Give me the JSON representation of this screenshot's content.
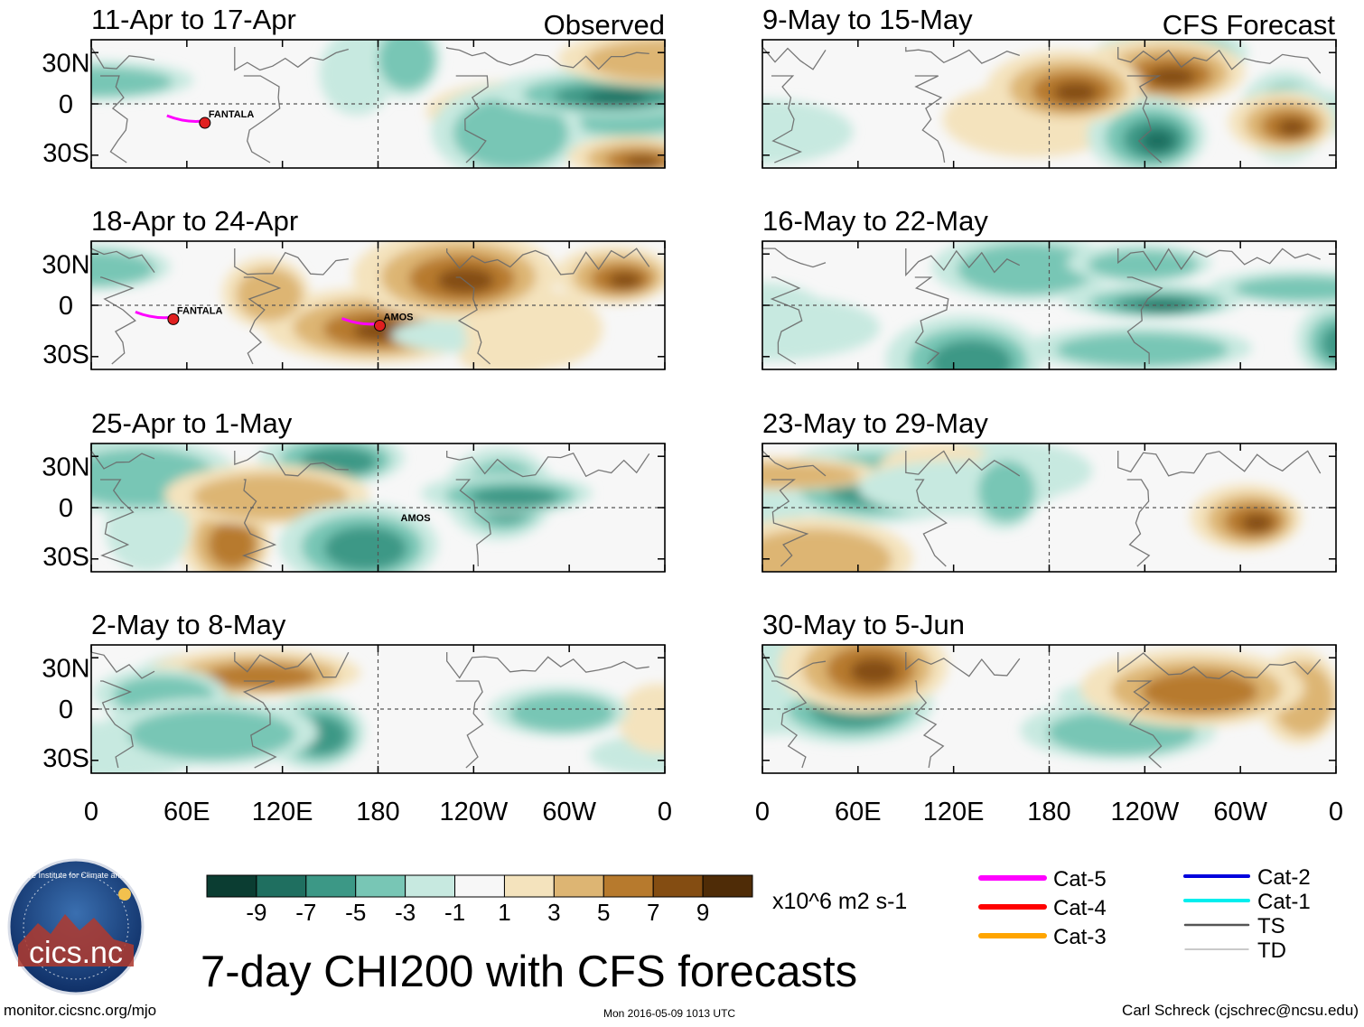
{
  "header": {
    "observed_label": "Observed",
    "forecast_label": "CFS Forecast"
  },
  "chart_data": {
    "type": "heatmap",
    "title": "7-day CHI200 with CFS forecasts",
    "variable": "CHI200 anomaly (7-day mean)",
    "units": "x10^6 m2 s-1",
    "x_ticks": [
      "0",
      "60E",
      "120E",
      "180",
      "120W",
      "60W",
      "0"
    ],
    "y_ticks": [
      "30N",
      "0",
      "30S"
    ],
    "colorbar": {
      "labels": [
        "-9",
        "-7",
        "-5",
        "-3",
        "-1",
        "1",
        "3",
        "5",
        "7",
        "9"
      ],
      "colors": [
        "#0b3d32",
        "#1f6f60",
        "#3c9886",
        "#78c6b5",
        "#c7e9e0",
        "#f7f7f7",
        "#f4e3bd",
        "#ddb573",
        "#b77a2d",
        "#844d12",
        "#4f2c07"
      ]
    },
    "panels": [
      {
        "column": "Observed",
        "period": "11-Apr to 17-Apr",
        "storm_labels": [
          "FANTALA"
        ]
      },
      {
        "column": "Observed",
        "period": "18-Apr to 24-Apr",
        "storm_labels": [
          "FANTALA",
          "AMOS"
        ]
      },
      {
        "column": "Observed",
        "period": "25-Apr to 1-May",
        "storm_labels": [
          "AMOS"
        ]
      },
      {
        "column": "Observed",
        "period": "2-May to 8-May",
        "storm_labels": []
      },
      {
        "column": "CFS Forecast",
        "period": "9-May to 15-May",
        "storm_labels": []
      },
      {
        "column": "CFS Forecast",
        "period": "16-May to 22-May",
        "storm_labels": []
      },
      {
        "column": "CFS Forecast",
        "period": "23-May to 29-May",
        "storm_labels": []
      },
      {
        "column": "CFS Forecast",
        "period": "30-May to 5-Jun",
        "storm_labels": []
      }
    ]
  },
  "legend": {
    "track_categories": [
      {
        "label": "Cat-5",
        "color": "#ff00ff"
      },
      {
        "label": "Cat-4",
        "color": "#ff0000"
      },
      {
        "label": "Cat-3",
        "color": "#ffa500"
      },
      {
        "label": "Cat-2",
        "color": "#0000dd"
      },
      {
        "label": "Cat-1",
        "color": "#00eeee"
      },
      {
        "label": "TS",
        "color": "#555555"
      },
      {
        "label": "TD",
        "color": "#aaaaaa"
      }
    ]
  },
  "logo": {
    "text": "cics.nc",
    "ring_text": "Cooperative Institute for Climate and Satellites"
  },
  "footer": {
    "url": "monitor.cicsnc.org/mjo",
    "timestamp": "Mon 2016-05-09 1013 UTC",
    "credit": "Carl Schreck (cjschrec@ncsu.edu)"
  }
}
